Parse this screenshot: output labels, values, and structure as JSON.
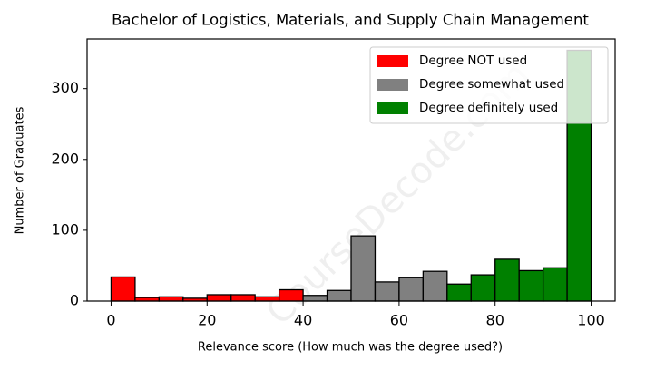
{
  "chart_data": {
    "type": "histogram",
    "title": "Bachelor of Logistics, Materials, and Supply Chain Management",
    "x_label": "Relevance score (How much was the degree used?)",
    "y_label": "Number of Graduates",
    "watermark": "CourseDecode.com",
    "series": [
      {
        "name": "Degree NOT used",
        "color": "#ff0000",
        "bins": [
          0,
          5,
          10,
          15,
          20,
          25,
          30,
          35,
          40
        ],
        "values": [
          34,
          5,
          6,
          4,
          9,
          9,
          6,
          16
        ]
      },
      {
        "name": "Degree somewhat used",
        "color": "#808080",
        "bins": [
          40,
          45,
          50,
          55,
          60,
          65,
          70
        ],
        "values": [
          8,
          15,
          92,
          27,
          33,
          42
        ]
      },
      {
        "name": "Degree definitely used",
        "color": "#008000",
        "bins": [
          70,
          75,
          80,
          85,
          90,
          95,
          100
        ],
        "values": [
          24,
          37,
          59,
          43,
          47,
          354
        ]
      }
    ],
    "xlim": [
      -5,
      105
    ],
    "ylim": [
      0,
      370
    ],
    "xticks": [
      0,
      20,
      40,
      60,
      80,
      100
    ],
    "yticks": [
      0,
      100,
      200,
      300
    ],
    "legend": "upper right"
  }
}
